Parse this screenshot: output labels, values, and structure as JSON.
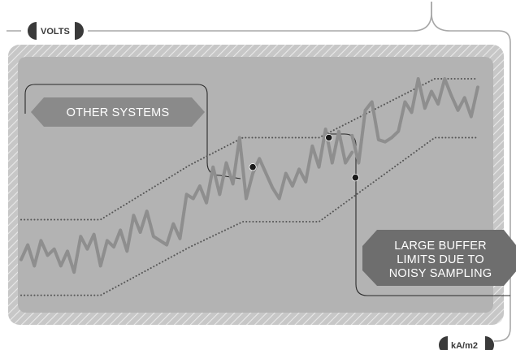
{
  "chart_data": {
    "type": "line",
    "title": "",
    "ylabel": "VOLTS",
    "xlabel": "kA/m2",
    "grid": false,
    "legend": "none",
    "xlim": [
      0,
      100
    ],
    "ylim": [
      0,
      100
    ],
    "series": [
      {
        "values": [
          [
            0,
            14
          ],
          [
            2,
            21
          ],
          [
            4,
            11
          ],
          [
            6,
            23
          ],
          [
            8,
            16
          ],
          [
            10,
            19
          ],
          [
            12,
            11
          ],
          [
            14,
            18
          ],
          [
            16,
            8
          ],
          [
            18,
            25
          ],
          [
            20,
            19
          ],
          [
            22,
            26
          ],
          [
            24,
            11
          ],
          [
            26,
            23
          ],
          [
            28,
            20
          ],
          [
            30,
            28
          ],
          [
            32,
            18
          ],
          [
            34,
            35
          ],
          [
            36,
            27
          ],
          [
            38,
            37
          ],
          [
            40,
            25
          ],
          [
            42,
            23
          ],
          [
            44,
            21
          ],
          [
            46,
            31
          ],
          [
            48,
            24
          ],
          [
            50,
            45
          ],
          [
            52,
            43
          ],
          [
            54,
            49
          ],
          [
            56,
            41
          ],
          [
            58,
            58
          ],
          [
            60,
            45
          ],
          [
            62,
            60
          ],
          [
            64,
            50
          ],
          [
            66,
            72
          ],
          [
            68,
            43
          ],
          [
            70,
            55
          ],
          [
            72,
            62
          ],
          [
            74,
            55
          ],
          [
            76,
            48
          ],
          [
            78,
            43
          ],
          [
            80,
            55
          ],
          [
            82,
            49
          ],
          [
            84,
            57
          ],
          [
            86,
            51
          ],
          [
            88,
            68
          ],
          [
            90,
            58
          ],
          [
            92,
            76
          ],
          [
            94,
            60
          ],
          [
            96,
            75
          ],
          [
            98,
            60
          ],
          [
            100,
            65
          ]
        ]
      },
      {
        "values": [
          [
            100,
            73
          ],
          [
            102,
            60
          ],
          [
            104,
            85
          ],
          [
            106,
            89
          ],
          [
            108,
            71
          ],
          [
            110,
            70
          ],
          [
            112,
            72
          ],
          [
            114,
            75
          ],
          [
            116,
            89
          ],
          [
            118,
            84
          ],
          [
            120,
            100
          ],
          [
            122,
            86
          ],
          [
            124,
            94
          ],
          [
            126,
            88
          ],
          [
            128,
            100
          ],
          [
            130,
            92
          ],
          [
            132,
            85
          ],
          [
            134,
            91
          ],
          [
            136,
            82
          ],
          [
            138,
            96
          ]
        ]
      }
    ],
    "bounds": [
      {
        "values": [
          [
            0,
            33
          ],
          [
            24,
            33
          ],
          [
            51,
            59
          ],
          [
            67,
            72
          ],
          [
            90,
            72
          ],
          [
            125,
            100
          ],
          [
            138,
            100
          ]
        ]
      },
      {
        "values": [
          [
            0,
            -3
          ],
          [
            24,
            -3
          ],
          [
            51,
            20
          ],
          [
            67,
            32
          ],
          [
            90,
            32
          ],
          [
            125,
            72
          ],
          [
            138,
            72
          ]
        ]
      }
    ],
    "markers": [
      [
        70,
        58
      ],
      [
        93,
        72
      ],
      [
        101,
        53
      ]
    ],
    "annotations": [
      {
        "text": "OTHER SYSTEMS",
        "points_to": [
          70,
          58
        ]
      },
      {
        "text": "LARGE BUFFER\nLIMITS DUE TO\nNOISY SAMPLING",
        "points_to": [
          101,
          53
        ]
      }
    ]
  },
  "colors": {
    "panel_background": "#c7c7c7",
    "hatch": "#e9e9e9",
    "inner_panel": "#b3b3b3",
    "data_line": "#8e8e8e",
    "bound_dots": "#555555",
    "markers": "#1a1a1a",
    "callout_fill": "#8a8a8a",
    "frame_line": "#a8a8a8",
    "axis_tab": "#3a3a3a"
  },
  "icons": {
    "axis_tab_left": "half-circle-tab-icon",
    "axis_tab_right": "half-circle-tab-icon"
  }
}
